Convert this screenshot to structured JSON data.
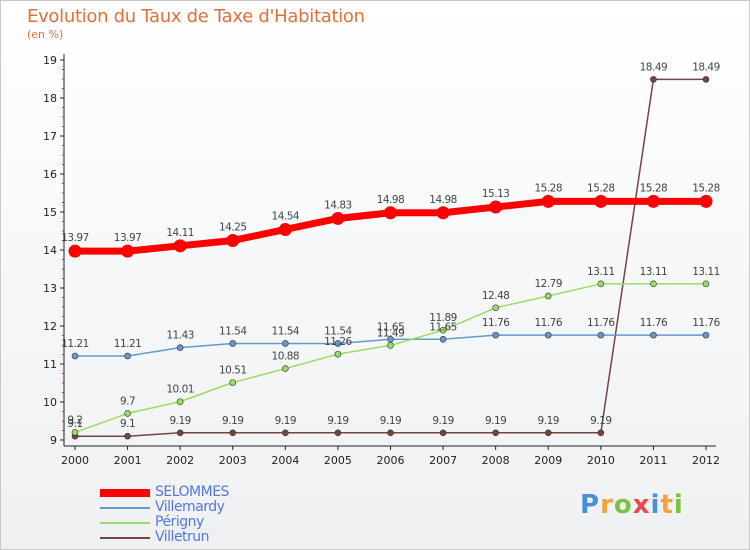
{
  "header": {
    "title": "Evolution du Taux de Taxe d'Habitation",
    "unit": "(en %)"
  },
  "logo": {
    "letters": [
      "P",
      "r",
      "o",
      "x",
      "i",
      "t",
      "i"
    ],
    "colors": [
      "#4a90d9",
      "#f2a23a",
      "#7cc142",
      "#e64a4a",
      "#4a90d9",
      "#f2a23a",
      "#7cc142"
    ]
  },
  "chart_data": {
    "type": "line",
    "x": [
      "2000",
      "2001",
      "2002",
      "2003",
      "2004",
      "2005",
      "2006",
      "2007",
      "2008",
      "2009",
      "2010",
      "2011",
      "2012"
    ],
    "ylim": [
      9,
      19
    ],
    "yticks": [
      "9",
      "10",
      "11",
      "12",
      "13",
      "14",
      "15",
      "16",
      "17",
      "18",
      "19"
    ],
    "grid": false,
    "legend": "bottom-left",
    "series": [
      {
        "name": "SELOMMES",
        "color": "#ff0000",
        "values": [
          13.97,
          13.97,
          14.11,
          14.25,
          14.54,
          14.83,
          14.98,
          14.98,
          15.13,
          15.28,
          15.28,
          15.28,
          15.28
        ],
        "labels": [
          "13.97",
          "13.97",
          "14.11",
          "14.25",
          "14.54",
          "14.83",
          "14.98",
          "14.98",
          "15.13",
          "15.28",
          "15.28",
          "15.28",
          "15.28"
        ]
      },
      {
        "name": "Villemardy",
        "color": "#6699cc",
        "values": [
          11.21,
          11.21,
          11.43,
          11.54,
          11.54,
          11.54,
          11.65,
          11.65,
          11.76,
          11.76,
          11.76,
          11.76,
          11.76
        ],
        "labels": [
          "11.21",
          "11.21",
          "11.43",
          "11.54",
          "11.54",
          "11.54",
          "11.65",
          "11.65",
          "11.76",
          "11.76",
          "11.76",
          "11.76",
          "11.76"
        ]
      },
      {
        "name": "Périgny",
        "color": "#99dd66",
        "values": [
          9.2,
          9.7,
          10.01,
          10.51,
          10.88,
          11.26,
          11.49,
          11.89,
          12.48,
          12.79,
          13.11,
          13.11,
          13.11
        ],
        "labels": [
          "9.2",
          "9.7",
          "10.01",
          "10.51",
          "10.88",
          "11.26",
          "11.49",
          "11.89",
          "12.48",
          "12.79",
          "13.11",
          "13.11",
          "13.11"
        ]
      },
      {
        "name": "Villetrun",
        "color": "#774444",
        "values": [
          9.1,
          9.1,
          9.19,
          9.19,
          9.19,
          9.19,
          9.19,
          9.19,
          9.19,
          9.19,
          9.19,
          18.49,
          18.49
        ],
        "labels": [
          "9.1",
          "9.1",
          "9.19",
          "9.19",
          "9.19",
          "9.19",
          "9.19",
          "9.19",
          "9.19",
          "9.19",
          "9.19",
          "18.49",
          "18.49"
        ]
      }
    ]
  }
}
